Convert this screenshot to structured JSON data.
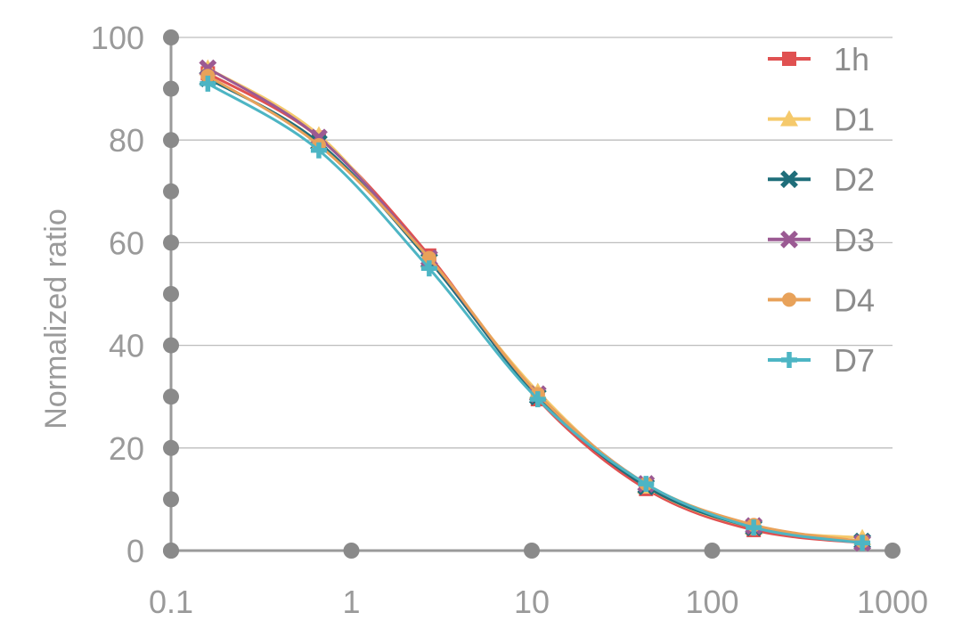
{
  "chart_data": {
    "type": "line",
    "xscale": "log",
    "x": [
      0.16,
      0.66,
      2.7,
      10.8,
      43,
      170,
      680
    ],
    "xticks": [
      "0.1",
      "1",
      "10",
      "100",
      "1000"
    ],
    "xlim": [
      0.1,
      1000
    ],
    "ylabel": "Normalized ratio",
    "yticks": [
      "0",
      "20",
      "40",
      "60",
      "80",
      "100"
    ],
    "ylim": [
      0,
      100
    ],
    "grid": "horizontal",
    "legend_position": "right",
    "series": [
      {
        "name": "1h",
        "color": "#e05151",
        "marker": "square",
        "values": [
          93.0,
          80.5,
          57.5,
          29.5,
          12.0,
          4.0,
          1.5
        ]
      },
      {
        "name": "D1",
        "color": "#f5c96b",
        "marker": "triangle",
        "values": [
          94.0,
          81.0,
          56.5,
          31.0,
          12.5,
          4.5,
          2.5
        ]
      },
      {
        "name": "D2",
        "color": "#1f6e7a",
        "marker": "x",
        "values": [
          92.0,
          79.5,
          56.5,
          30.0,
          12.5,
          4.5,
          1.8
        ]
      },
      {
        "name": "D3",
        "color": "#9b5a93",
        "marker": "x",
        "values": [
          94.0,
          80.5,
          57.0,
          30.5,
          13.0,
          4.8,
          1.5
        ]
      },
      {
        "name": "D4",
        "color": "#e8a25a",
        "marker": "circle",
        "values": [
          92.5,
          79.0,
          57.0,
          30.5,
          13.0,
          5.0,
          1.8
        ]
      },
      {
        "name": "D7",
        "color": "#4db5c4",
        "marker": "plus",
        "values": [
          91.0,
          78.0,
          55.0,
          29.5,
          13.0,
          4.5,
          1.5
        ]
      }
    ]
  }
}
